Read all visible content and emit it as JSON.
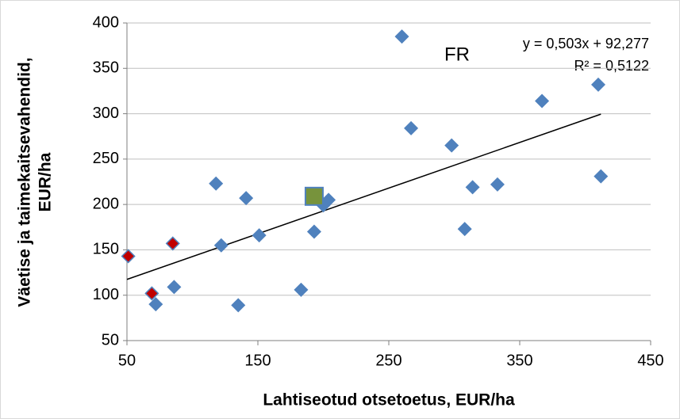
{
  "chart_data": {
    "type": "scatter",
    "xlabel": "Lahtiseotud otsetoetus, EUR/ha",
    "ylabel": [
      "Väetise ja taimekaitsevahendid,",
      "EUR/ha"
    ],
    "annotations": [
      "FR",
      "y = 0,503x + 92,277",
      "R² = 0,5122"
    ],
    "xlim": [
      50,
      450
    ],
    "xticks": [
      50,
      150,
      250,
      350,
      450
    ],
    "ylim": [
      50,
      400
    ],
    "yticks": [
      50,
      100,
      150,
      200,
      250,
      300,
      350,
      400
    ],
    "grid": true,
    "series": [
      {
        "color": "#4f81bd",
        "marker": "diamond",
        "x": [
          260,
          267,
          298,
          367,
          410,
          412,
          314,
          333,
          308,
          118,
          141,
          151,
          122,
          193,
          200,
          204,
          183,
          135,
          72,
          86
        ],
        "y": [
          385,
          284,
          265,
          314,
          332,
          231,
          219,
          222,
          173,
          223,
          207,
          166,
          155,
          170,
          199,
          205,
          106,
          89,
          90,
          109
        ]
      },
      {
        "color": "#c00000",
        "marker": "diamond",
        "x": [
          51,
          69,
          85
        ],
        "y": [
          143,
          102,
          157
        ]
      },
      {
        "color": "#77933c",
        "marker": "square",
        "x": [
          193
        ],
        "y": [
          209
        ]
      }
    ],
    "trendline": {
      "slope": 0.503,
      "intercept": 92.277,
      "x_range": [
        50,
        412
      ],
      "color": "#000000"
    }
  }
}
